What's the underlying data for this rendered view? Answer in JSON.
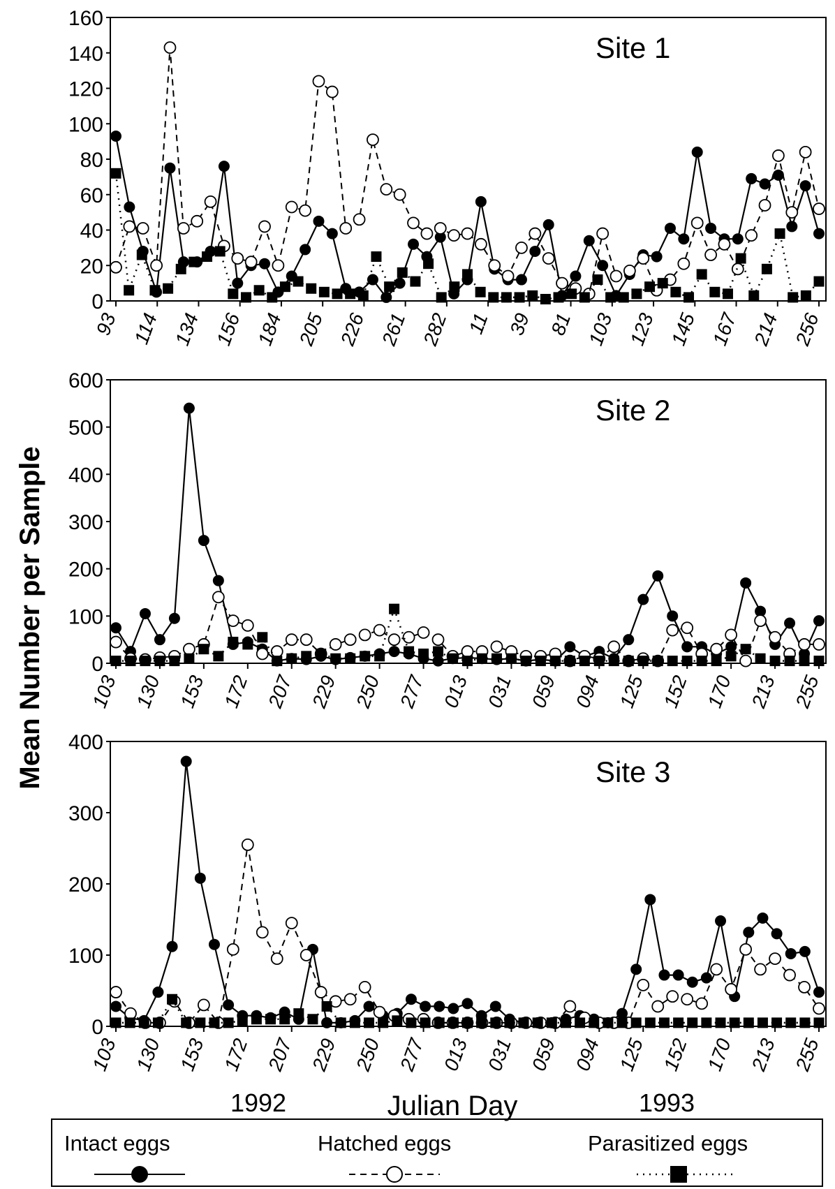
{
  "ylabel": "Mean Number per Sample",
  "xlabel": "Julian Day",
  "year_labels": [
    "1992",
    "1993"
  ],
  "legend": {
    "items": [
      {
        "name": "Intact eggs",
        "marker": "filled-circle",
        "line": "solid"
      },
      {
        "name": "Hatched eggs",
        "marker": "open-circle",
        "line": "dashed"
      },
      {
        "name": "Parasitized eggs",
        "marker": "filled-square",
        "line": "dotted"
      }
    ]
  },
  "chart_data": [
    {
      "type": "line",
      "title": "Site 1",
      "ylim": [
        0,
        160
      ],
      "yticks": [
        0,
        20,
        40,
        60,
        80,
        100,
        120,
        140,
        160
      ],
      "x_tick_labels": [
        "93",
        "114",
        "134",
        "156",
        "184",
        "205",
        "226",
        "261",
        "282",
        "11",
        "39",
        "81",
        "103",
        "123",
        "145",
        "167",
        "214",
        "256"
      ],
      "series": [
        {
          "name": "Intact eggs",
          "values": [
            93,
            53,
            28,
            5,
            75,
            22,
            22,
            28,
            76,
            10,
            20,
            21,
            5,
            14,
            29,
            45,
            38,
            7,
            5,
            12,
            2,
            10,
            32,
            25,
            36,
            4,
            12,
            56,
            18,
            12,
            12,
            28,
            43,
            3,
            14,
            34,
            20,
            3,
            15,
            26,
            25,
            41,
            35,
            84,
            41,
            35,
            35,
            69,
            66,
            71,
            42,
            65,
            38
          ]
        },
        {
          "name": "Hatched eggs",
          "values": [
            19,
            42,
            41,
            20,
            143,
            41,
            45,
            56,
            31,
            24,
            22,
            42,
            20,
            53,
            51,
            124,
            118,
            41,
            46,
            91,
            63,
            60,
            44,
            38,
            41,
            37,
            38,
            32,
            20,
            14,
            30,
            38,
            24,
            10,
            7,
            4,
            38,
            14,
            17,
            24,
            6,
            12,
            21,
            44,
            26,
            32,
            18,
            37,
            54,
            82,
            50,
            84,
            52
          ]
        },
        {
          "name": "Parasitized eggs",
          "values": [
            72,
            6,
            26,
            6,
            7,
            18,
            22,
            25,
            28,
            4,
            2,
            6,
            2,
            8,
            11,
            7,
            5,
            4,
            4,
            3,
            25,
            8,
            16,
            11,
            21,
            2,
            8,
            15,
            5,
            2,
            2,
            2,
            3,
            1,
            2,
            4,
            2,
            12,
            2,
            2,
            4,
            8,
            10,
            5,
            2,
            15,
            5,
            4,
            24,
            3,
            18,
            38,
            2,
            3,
            11
          ]
        }
      ]
    },
    {
      "type": "line",
      "title": "Site 2",
      "ylim": [
        0,
        600
      ],
      "yticks": [
        0,
        100,
        200,
        300,
        400,
        500,
        600
      ],
      "x_tick_labels": [
        "103",
        "130",
        "153",
        "172",
        "207",
        "229",
        "250",
        "277",
        "013",
        "031",
        "059",
        "094",
        "125",
        "152",
        "170",
        "213",
        "255"
      ],
      "series": [
        {
          "name": "Intact eggs",
          "values": [
            75,
            25,
            105,
            50,
            95,
            540,
            260,
            175,
            40,
            45,
            30,
            5,
            10,
            8,
            15,
            8,
            12,
            15,
            20,
            25,
            20,
            10,
            5,
            10,
            12,
            10,
            8,
            10,
            5,
            8,
            5,
            35,
            15,
            25,
            10,
            50,
            135,
            185,
            100,
            35,
            35,
            20,
            35,
            170,
            110,
            40,
            85,
            20,
            90
          ]
        },
        {
          "name": "Hatched eggs",
          "values": [
            45,
            10,
            8,
            12,
            15,
            30,
            40,
            140,
            90,
            80,
            20,
            25,
            50,
            50,
            20,
            40,
            50,
            60,
            70,
            50,
            55,
            65,
            50,
            15,
            25,
            25,
            35,
            25,
            15,
            15,
            20,
            5,
            15,
            10,
            35,
            5,
            10,
            5,
            70,
            75,
            20,
            30,
            60,
            5,
            90,
            55,
            20,
            40,
            40
          ]
        },
        {
          "name": "Parasitized eggs",
          "values": [
            5,
            5,
            5,
            5,
            5,
            10,
            30,
            15,
            45,
            40,
            55,
            5,
            10,
            15,
            20,
            10,
            10,
            15,
            15,
            115,
            25,
            20,
            25,
            10,
            5,
            10,
            10,
            10,
            5,
            5,
            5,
            5,
            5,
            5,
            5,
            5,
            5,
            5,
            5,
            5,
            5,
            5,
            15,
            30,
            10,
            5,
            5,
            5,
            5
          ]
        }
      ]
    },
    {
      "type": "line",
      "title": "Site 3",
      "ylim": [
        0,
        400
      ],
      "yticks": [
        0,
        100,
        200,
        300,
        400
      ],
      "x_tick_labels": [
        "103",
        "130",
        "153",
        "172",
        "207",
        "229",
        "250",
        "277",
        "013",
        "031",
        "059",
        "094",
        "125",
        "152",
        "170",
        "213",
        "255"
      ],
      "series": [
        {
          "name": "Intact eggs",
          "values": [
            28,
            12,
            8,
            48,
            112,
            372,
            208,
            115,
            30,
            15,
            15,
            12,
            20,
            10,
            108,
            5,
            5,
            8,
            28,
            15,
            18,
            38,
            28,
            28,
            25,
            32,
            15,
            28,
            10,
            5,
            5,
            5,
            10,
            15,
            10,
            5,
            18,
            80,
            178,
            72,
            72,
            62,
            68,
            148,
            42,
            132,
            152,
            130,
            102,
            105,
            48
          ]
        },
        {
          "name": "Hatched eggs",
          "values": [
            48,
            18,
            5,
            5,
            35,
            5,
            30,
            5,
            108,
            255,
            132,
            95,
            145,
            100,
            48,
            35,
            38,
            55,
            20,
            15,
            10,
            10,
            5,
            5,
            5,
            5,
            5,
            5,
            5,
            5,
            5,
            28,
            12,
            5,
            5,
            5,
            58,
            28,
            42,
            38,
            32,
            80,
            52,
            108,
            80,
            95,
            72,
            55,
            25
          ]
        },
        {
          "name": "Parasitized eggs",
          "values": [
            5,
            5,
            5,
            5,
            38,
            5,
            5,
            5,
            5,
            8,
            10,
            10,
            10,
            18,
            10,
            28,
            5,
            5,
            5,
            5,
            8,
            5,
            5,
            5,
            5,
            5,
            5,
            5,
            5,
            5,
            5,
            5,
            5,
            5,
            5,
            5,
            5,
            5,
            5,
            5,
            5,
            5,
            5,
            5,
            5,
            5,
            5,
            5,
            5,
            5,
            5
          ]
        }
      ]
    }
  ]
}
